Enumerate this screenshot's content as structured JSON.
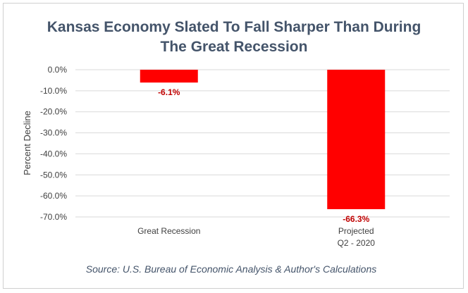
{
  "chart_data": {
    "type": "bar",
    "title_lines": [
      "Kansas Economy Slated To Fall Sharper Than During",
      "The Great Recession"
    ],
    "categories": [
      [
        "Great Recession"
      ],
      [
        "Projected",
        "Q2 - 2020"
      ]
    ],
    "values": [
      -6.1,
      -66.3
    ],
    "data_labels": [
      "-6.1%",
      "-66.3%"
    ],
    "ylabel": "Percent Decline",
    "xlabel": "",
    "ylim": [
      -70,
      0
    ],
    "y_ticks": [
      0,
      -10,
      -20,
      -30,
      -40,
      -50,
      -60,
      -70
    ],
    "y_tick_labels": [
      "0.0%",
      "-10.0%",
      "-20.0%",
      "-30.0%",
      "-40.0%",
      "-50.0%",
      "-60.0%",
      "-70.0%"
    ],
    "grid": true,
    "legend": "none",
    "source": "Source: U.S. Bureau of Economic Analysis & Author's Calculations",
    "colors": {
      "bar": "#ff0000",
      "data_label": "#c00000",
      "title": "#44546a",
      "grid": "#d9d9d9",
      "text": "#404040"
    }
  }
}
